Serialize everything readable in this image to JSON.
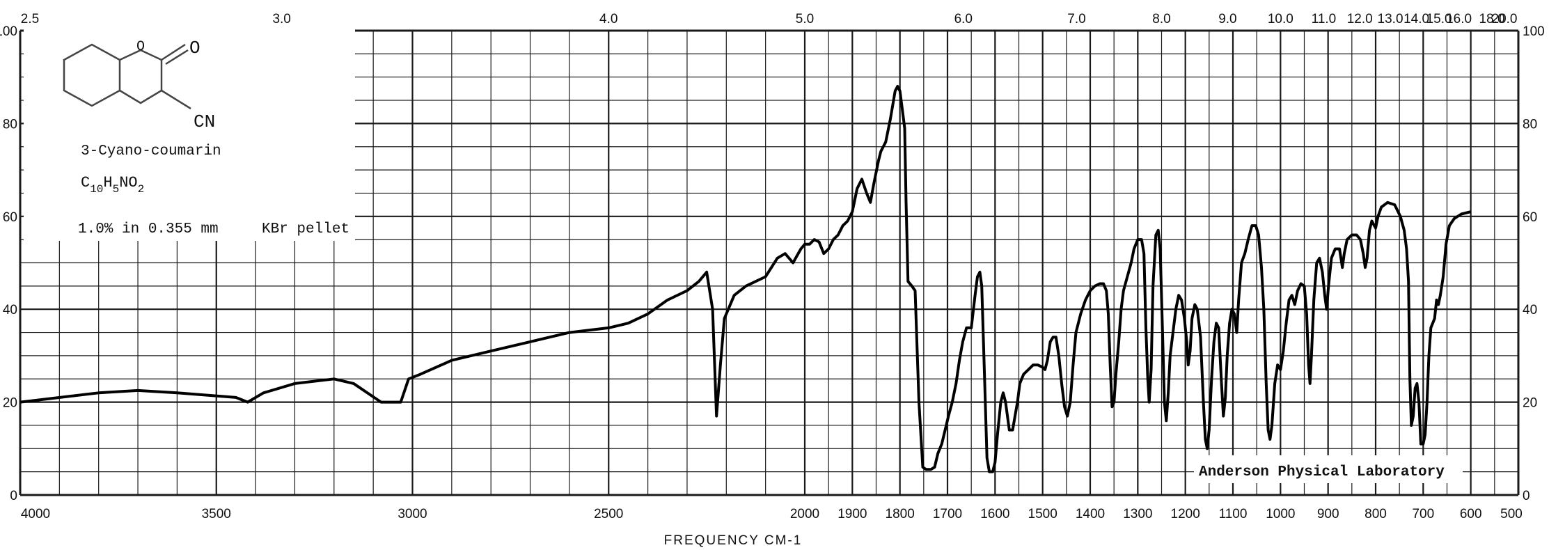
{
  "sample": {
    "name": "3-Cyano-coumarin",
    "formula": "C10H5NO2",
    "formula_c": "C",
    "formula_c_sub": "10",
    "formula_h": "H",
    "formula_h_sub": "5",
    "formula_no": "NO",
    "formula_no_sub": "2",
    "conditions": "1.0% in 0.355 mm",
    "pellet": "KBr pellet",
    "structure_labels": {
      "o_ring": "O",
      "o_carbonyl": "O",
      "cn": "CN"
    }
  },
  "stamp": "Anderson Physical Laboratory",
  "colors": {
    "line": "#000000",
    "grid": "#1a1a1a",
    "background": "#ffffff"
  },
  "chart_data": {
    "type": "line",
    "title": "",
    "xlabel": "FREQUENCY CM-1",
    "ylabel": "",
    "grid": true,
    "x_axis": "wavenumber",
    "x_units": "cm-1",
    "xlim": [
      4000,
      500
    ],
    "ylim": [
      0,
      100
    ],
    "bottom_ticks": [
      "4000",
      "3500",
      "3000",
      "2500",
      "2000",
      "1900",
      "1800",
      "1700",
      "1600",
      "1500",
      "1400",
      "1300",
      "1200",
      "1100",
      "1000",
      "900",
      "800",
      "700",
      "600",
      "500"
    ],
    "top_ticks": [
      "2.5",
      "3.0",
      "4.0",
      "5.0",
      "6.0",
      "7.0",
      "8.0",
      "9.0",
      "10.0",
      "11.0",
      "12.0",
      "13.0",
      "14.0",
      "15.0",
      "16.0",
      "18.0",
      "20.0"
    ],
    "left_ticks": [
      "0",
      "20",
      "40",
      "60",
      "80",
      "100"
    ],
    "right_ticks": [
      "0",
      "20",
      "40",
      "60",
      "80",
      "100"
    ],
    "series": [
      {
        "points": [
          [
            4000,
            20
          ],
          [
            3800,
            22
          ],
          [
            3700,
            22.5
          ],
          [
            3600,
            22
          ],
          [
            3450,
            21
          ],
          [
            3420,
            20
          ],
          [
            3380,
            22
          ],
          [
            3300,
            24
          ],
          [
            3200,
            25
          ],
          [
            3150,
            24
          ],
          [
            3080,
            20
          ],
          [
            3030,
            20
          ],
          [
            3010,
            25
          ],
          [
            2980,
            26
          ],
          [
            2900,
            29
          ],
          [
            2800,
            31
          ],
          [
            2700,
            33
          ],
          [
            2600,
            35
          ],
          [
            2500,
            36
          ],
          [
            2450,
            37
          ],
          [
            2400,
            39
          ],
          [
            2350,
            42
          ],
          [
            2300,
            44
          ],
          [
            2270,
            46
          ],
          [
            2250,
            48
          ],
          [
            2235,
            40
          ],
          [
            2225,
            17
          ],
          [
            2215,
            28
          ],
          [
            2205,
            38
          ],
          [
            2180,
            43
          ],
          [
            2150,
            45
          ],
          [
            2100,
            47
          ],
          [
            2070,
            51
          ],
          [
            2050,
            52
          ],
          [
            2030,
            50
          ],
          [
            2010,
            53
          ],
          [
            2000,
            54
          ],
          [
            1990,
            54
          ],
          [
            1980,
            55
          ],
          [
            1970,
            54.5
          ],
          [
            1960,
            52
          ],
          [
            1950,
            53
          ],
          [
            1940,
            55
          ],
          [
            1930,
            56
          ],
          [
            1920,
            58
          ],
          [
            1910,
            59
          ],
          [
            1900,
            61
          ],
          [
            1890,
            66
          ],
          [
            1880,
            68
          ],
          [
            1870,
            65
          ],
          [
            1862,
            63
          ],
          [
            1855,
            67
          ],
          [
            1845,
            72
          ],
          [
            1840,
            74
          ],
          [
            1830,
            76
          ],
          [
            1820,
            81
          ],
          [
            1810,
            87
          ],
          [
            1805,
            88
          ],
          [
            1800,
            87
          ],
          [
            1795,
            83
          ],
          [
            1790,
            79
          ],
          [
            1787,
            63
          ],
          [
            1783,
            46
          ],
          [
            1775,
            45
          ],
          [
            1768,
            44
          ],
          [
            1760,
            20
          ],
          [
            1752,
            6
          ],
          [
            1745,
            5.5
          ],
          [
            1735,
            5.5
          ],
          [
            1727,
            6
          ],
          [
            1720,
            9
          ],
          [
            1712,
            11
          ],
          [
            1705,
            14
          ],
          [
            1698,
            17
          ],
          [
            1690,
            20
          ],
          [
            1682,
            24
          ],
          [
            1675,
            29
          ],
          [
            1668,
            33
          ],
          [
            1660,
            36
          ],
          [
            1650,
            36
          ],
          [
            1642,
            43
          ],
          [
            1637,
            47
          ],
          [
            1632,
            48
          ],
          [
            1628,
            45
          ],
          [
            1622,
            25
          ],
          [
            1617,
            8
          ],
          [
            1612,
            5
          ],
          [
            1605,
            5
          ],
          [
            1600,
            7
          ],
          [
            1595,
            13
          ],
          [
            1588,
            20
          ],
          [
            1583,
            22
          ],
          [
            1578,
            20
          ],
          [
            1574,
            17
          ],
          [
            1570,
            14
          ],
          [
            1563,
            14
          ],
          [
            1558,
            17
          ],
          [
            1553,
            20
          ],
          [
            1548,
            24
          ],
          [
            1540,
            26
          ],
          [
            1530,
            27
          ],
          [
            1520,
            28
          ],
          [
            1510,
            28
          ],
          [
            1500,
            27.5
          ],
          [
            1495,
            27
          ],
          [
            1490,
            29
          ],
          [
            1484,
            33
          ],
          [
            1478,
            34
          ],
          [
            1472,
            34
          ],
          [
            1466,
            30
          ],
          [
            1460,
            24
          ],
          [
            1454,
            19
          ],
          [
            1448,
            17
          ],
          [
            1442,
            20
          ],
          [
            1436,
            28
          ],
          [
            1430,
            35
          ],
          [
            1420,
            39
          ],
          [
            1410,
            42
          ],
          [
            1400,
            44
          ],
          [
            1390,
            45
          ],
          [
            1380,
            45.5
          ],
          [
            1372,
            45.5
          ],
          [
            1366,
            44
          ],
          [
            1362,
            39
          ],
          [
            1358,
            28
          ],
          [
            1354,
            19
          ],
          [
            1350,
            20
          ],
          [
            1346,
            26
          ],
          [
            1340,
            33
          ],
          [
            1335,
            40
          ],
          [
            1330,
            44
          ],
          [
            1322,
            47
          ],
          [
            1314,
            50
          ],
          [
            1308,
            53
          ],
          [
            1300,
            55
          ],
          [
            1292,
            55
          ],
          [
            1287,
            52
          ],
          [
            1283,
            36
          ],
          [
            1279,
            25
          ],
          [
            1276,
            20
          ],
          [
            1272,
            27
          ],
          [
            1268,
            45
          ],
          [
            1262,
            56
          ],
          [
            1257,
            57
          ],
          [
            1253,
            53
          ],
          [
            1248,
            35
          ],
          [
            1244,
            20
          ],
          [
            1240,
            16
          ],
          [
            1236,
            22
          ],
          [
            1232,
            30
          ],
          [
            1226,
            35
          ],
          [
            1220,
            40
          ],
          [
            1214,
            43
          ],
          [
            1208,
            42
          ],
          [
            1202,
            38
          ],
          [
            1197,
            33
          ],
          [
            1194,
            28
          ],
          [
            1190,
            31
          ],
          [
            1186,
            38
          ],
          [
            1180,
            41
          ],
          [
            1175,
            40
          ],
          [
            1168,
            34
          ],
          [
            1162,
            20
          ],
          [
            1158,
            12
          ],
          [
            1154,
            10
          ],
          [
            1150,
            14
          ],
          [
            1145,
            25
          ],
          [
            1140,
            33
          ],
          [
            1135,
            37
          ],
          [
            1130,
            36
          ],
          [
            1124,
            24
          ],
          [
            1120,
            17
          ],
          [
            1116,
            21
          ],
          [
            1112,
            30
          ],
          [
            1107,
            37
          ],
          [
            1102,
            40
          ],
          [
            1097,
            39
          ],
          [
            1092,
            35
          ],
          [
            1088,
            42
          ],
          [
            1082,
            50
          ],
          [
            1075,
            52
          ],
          [
            1068,
            55
          ],
          [
            1060,
            58
          ],
          [
            1052,
            58
          ],
          [
            1046,
            56
          ],
          [
            1040,
            49
          ],
          [
            1035,
            40
          ],
          [
            1030,
            24
          ],
          [
            1026,
            14
          ],
          [
            1022,
            12
          ],
          [
            1018,
            15
          ],
          [
            1012,
            24
          ],
          [
            1006,
            28
          ],
          [
            1000,
            27
          ],
          [
            994,
            31
          ],
          [
            988,
            37
          ],
          [
            982,
            42
          ],
          [
            976,
            43
          ],
          [
            970,
            41
          ],
          [
            964,
            44
          ],
          [
            957,
            45.5
          ],
          [
            950,
            45
          ],
          [
            945,
            39
          ],
          [
            941,
            28
          ],
          [
            938,
            24
          ],
          [
            935,
            30
          ],
          [
            930,
            42
          ],
          [
            924,
            50
          ],
          [
            918,
            51
          ],
          [
            912,
            48
          ],
          [
            907,
            43
          ],
          [
            903,
            40
          ],
          [
            899,
            45
          ],
          [
            893,
            51
          ],
          [
            885,
            53
          ],
          [
            876,
            53
          ],
          [
            870,
            49
          ],
          [
            866,
            52
          ],
          [
            860,
            55
          ],
          [
            850,
            56
          ],
          [
            840,
            56
          ],
          [
            832,
            55
          ],
          [
            826,
            52
          ],
          [
            822,
            49
          ],
          [
            818,
            51
          ],
          [
            813,
            57
          ],
          [
            808,
            59
          ],
          [
            800,
            57.5
          ],
          [
            795,
            60
          ],
          [
            788,
            62
          ],
          [
            775,
            63
          ],
          [
            760,
            62.5
          ],
          [
            748,
            60
          ],
          [
            740,
            57
          ],
          [
            735,
            53
          ],
          [
            731,
            46
          ],
          [
            728,
            25
          ],
          [
            725,
            15
          ],
          [
            721,
            17
          ],
          [
            717,
            23
          ],
          [
            713,
            24
          ],
          [
            709,
            20
          ],
          [
            705,
            11
          ],
          [
            700,
            11
          ],
          [
            696,
            13
          ],
          [
            692,
            20
          ],
          [
            688,
            30
          ],
          [
            684,
            36
          ],
          [
            680,
            37
          ],
          [
            676,
            38
          ],
          [
            672,
            42
          ],
          [
            668,
            41
          ],
          [
            664,
            43
          ],
          [
            658,
            47
          ],
          [
            652,
            54
          ],
          [
            645,
            58
          ],
          [
            635,
            59.5
          ],
          [
            620,
            60.5
          ],
          [
            600,
            61
          ]
        ]
      }
    ]
  }
}
